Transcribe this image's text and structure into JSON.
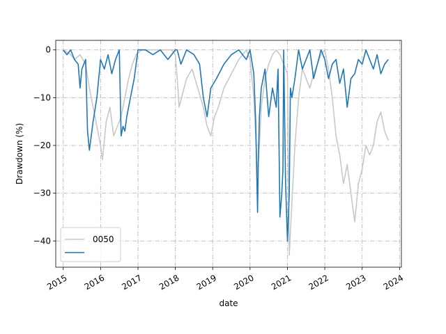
{
  "chart_data": {
    "type": "line",
    "title": "",
    "xlabel": "date",
    "ylabel": "Drawdown (%)",
    "xlim": [
      2014.8,
      2024.05
    ],
    "ylim": [
      -45.5,
      2.0
    ],
    "x_ticks": [
      2015,
      2016,
      2017,
      2018,
      2019,
      2020,
      2021,
      2022,
      2023,
      2024
    ],
    "x_tick_labels": [
      "2015",
      "2016",
      "2017",
      "2018",
      "2019",
      "2020",
      "2021",
      "2022",
      "2023",
      "2024"
    ],
    "y_ticks": [
      0,
      -10,
      -20,
      -30,
      -40
    ],
    "y_tick_labels": [
      "0",
      "−10",
      "−20",
      "−30",
      "−40"
    ],
    "grid": true,
    "legend_position": "lower-left",
    "series": [
      {
        "name": "0050",
        "color": "#c8c8c8",
        "x": [
          2015.0,
          2015.2,
          2015.3,
          2015.45,
          2015.6,
          2015.7,
          2015.8,
          2015.9,
          2016.0,
          2016.05,
          2016.15,
          2016.25,
          2016.35,
          2016.45,
          2016.55,
          2016.65,
          2016.75,
          2016.85,
          2016.95,
          2017.1,
          2017.3,
          2017.5,
          2017.7,
          2017.9,
          2018.0,
          2018.05,
          2018.1,
          2018.2,
          2018.3,
          2018.45,
          2018.6,
          2018.75,
          2018.85,
          2018.95,
          2019.05,
          2019.15,
          2019.3,
          2019.5,
          2019.7,
          2019.9,
          2020.0,
          2020.1,
          2020.2,
          2020.25,
          2020.3,
          2020.4,
          2020.5,
          2020.6,
          2020.7,
          2020.8,
          2020.9,
          2021.0,
          2021.05,
          2021.1,
          2021.2,
          2021.3,
          2021.4,
          2021.5,
          2021.6,
          2021.7,
          2021.8,
          2021.9,
          2022.0,
          2022.1,
          2022.2,
          2022.3,
          2022.4,
          2022.5,
          2022.6,
          2022.7,
          2022.8,
          2022.9,
          2023.0,
          2023.1,
          2023.2,
          2023.3,
          2023.4,
          2023.5,
          2023.6,
          2023.7
        ],
        "values": [
          0,
          -1,
          -2,
          -1,
          -3,
          -8,
          -12,
          -16,
          -20,
          -23,
          -15,
          -12,
          -18,
          -16,
          -14,
          -10,
          -6,
          -3,
          -1,
          0,
          0,
          0,
          0,
          0,
          -1,
          -6,
          -12,
          -9,
          -6,
          -4,
          -8,
          -12,
          -16,
          -18,
          -14,
          -12,
          -8,
          -5,
          -2,
          0,
          -2,
          -10,
          -26,
          -20,
          -12,
          -6,
          -3,
          -1,
          0,
          -1,
          -3,
          -5,
          -43,
          -35,
          -20,
          -10,
          -4,
          -6,
          -8,
          -5,
          -3,
          -1,
          0,
          -4,
          -10,
          -18,
          -22,
          -28,
          -24,
          -30,
          -36,
          -28,
          -25,
          -20,
          -22,
          -20,
          -15,
          -13,
          -17,
          -19
        ]
      },
      {
        "name": "",
        "color": "#1f77b4",
        "x": [
          2015.0,
          2015.1,
          2015.2,
          2015.3,
          2015.4,
          2015.45,
          2015.5,
          2015.6,
          2015.65,
          2015.7,
          2015.8,
          2015.9,
          2016.0,
          2016.1,
          2016.2,
          2016.3,
          2016.4,
          2016.5,
          2016.55,
          2016.6,
          2016.65,
          2016.7,
          2016.8,
          2016.9,
          2017.0,
          2017.05,
          2017.2,
          2017.4,
          2017.6,
          2017.8,
          2018.0,
          2018.05,
          2018.15,
          2018.3,
          2018.5,
          2018.65,
          2018.75,
          2018.85,
          2018.95,
          2019.1,
          2019.3,
          2019.5,
          2019.7,
          2019.9,
          2020.0,
          2020.1,
          2020.15,
          2020.2,
          2020.22,
          2020.25,
          2020.3,
          2020.4,
          2020.5,
          2020.6,
          2020.7,
          2020.75,
          2020.8,
          2020.85,
          2020.88,
          2020.9,
          2020.95,
          2021.0,
          2021.05,
          2021.08,
          2021.12,
          2021.2,
          2021.3,
          2021.4,
          2021.5,
          2021.6,
          2021.7,
          2021.8,
          2021.9,
          2022.0,
          2022.1,
          2022.2,
          2022.3,
          2022.4,
          2022.5,
          2022.6,
          2022.7,
          2022.8,
          2022.9,
          2023.0,
          2023.1,
          2023.2,
          2023.3,
          2023.4,
          2023.5,
          2023.6,
          2023.7
        ],
        "values": [
          0,
          -1,
          0,
          -2,
          -3,
          -8,
          -4,
          -2,
          -17,
          -21,
          -15,
          -10,
          -2,
          -4,
          -1,
          -5,
          -2,
          0,
          -18,
          -16,
          -17,
          -14,
          -10,
          -6,
          0,
          0,
          0,
          -1,
          0,
          -2,
          0,
          0,
          -3,
          0,
          -1,
          -3,
          -10,
          -14,
          -8,
          -6,
          -3,
          -1,
          0,
          -2,
          0,
          -5,
          -15,
          -34,
          -24,
          -14,
          -8,
          -4,
          -14,
          -8,
          -12,
          -4,
          -35,
          -30,
          -25,
          0,
          -28,
          -40,
          -30,
          -8,
          -10,
          -6,
          0,
          -4,
          -2,
          0,
          -6,
          -3,
          0,
          -2,
          -6,
          -3,
          -2,
          -7,
          -4,
          -12,
          -6,
          -5,
          -2,
          -3,
          0,
          -2,
          -4,
          -1,
          -5,
          -3,
          -2
        ]
      }
    ]
  }
}
